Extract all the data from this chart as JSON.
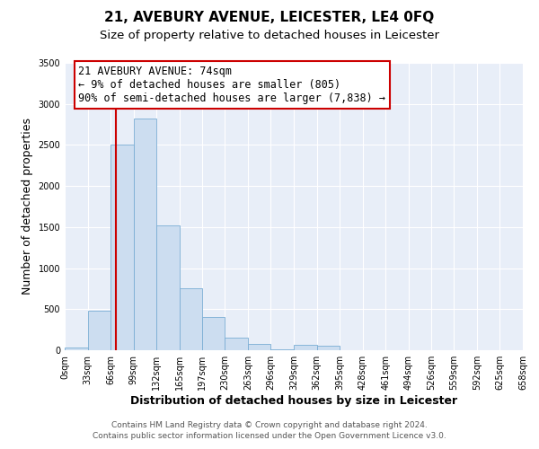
{
  "title": "21, AVEBURY AVENUE, LEICESTER, LE4 0FQ",
  "subtitle": "Size of property relative to detached houses in Leicester",
  "xlabel": "Distribution of detached houses by size in Leicester",
  "ylabel": "Number of detached properties",
  "bin_edges": [
    0,
    33,
    66,
    99,
    132,
    165,
    197,
    230,
    263,
    296,
    329,
    362,
    395,
    428,
    461,
    494,
    526,
    559,
    592,
    625,
    658
  ],
  "bin_labels": [
    "0sqm",
    "33sqm",
    "66sqm",
    "99sqm",
    "132sqm",
    "165sqm",
    "197sqm",
    "230sqm",
    "263sqm",
    "296sqm",
    "329sqm",
    "362sqm",
    "395sqm",
    "428sqm",
    "461sqm",
    "494sqm",
    "526sqm",
    "559sqm",
    "592sqm",
    "625sqm",
    "658sqm"
  ],
  "bar_heights": [
    30,
    480,
    2500,
    2820,
    1520,
    750,
    400,
    155,
    80,
    10,
    70,
    50,
    0,
    0,
    0,
    0,
    0,
    0,
    0,
    0
  ],
  "bar_color": "#ccddf0",
  "bar_edge_color": "#7aadd4",
  "vline_x": 74,
  "vline_color": "#cc0000",
  "ylim": [
    0,
    3500
  ],
  "yticks": [
    0,
    500,
    1000,
    1500,
    2000,
    2500,
    3000,
    3500
  ],
  "annotation_text": "21 AVEBURY AVENUE: 74sqm\n← 9% of detached houses are smaller (805)\n90% of semi-detached houses are larger (7,838) →",
  "annotation_box_color": "#ffffff",
  "annotation_box_edge": "#cc0000",
  "footer_line1": "Contains HM Land Registry data © Crown copyright and database right 2024.",
  "footer_line2": "Contains public sector information licensed under the Open Government Licence v3.0.",
  "background_color": "#ffffff",
  "plot_bg_color": "#e8eef8",
  "grid_color": "#ffffff",
  "title_fontsize": 11,
  "subtitle_fontsize": 9.5,
  "axis_label_fontsize": 9,
  "tick_fontsize": 7,
  "annotation_fontsize": 8.5,
  "footer_fontsize": 6.5
}
